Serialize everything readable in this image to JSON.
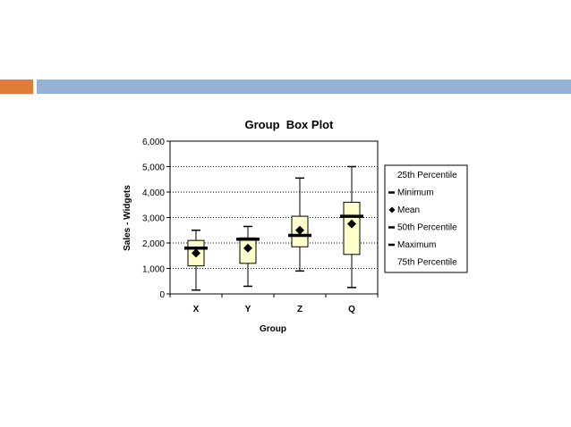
{
  "slide": {
    "accent_orange": "#e07b39",
    "accent_blue": "#95b3d7"
  },
  "chart_data": {
    "type": "box",
    "title": "Group  Box Plot",
    "xlabel": "Group",
    "ylabel": "Sales - Widgets",
    "ylim": [
      0,
      6000
    ],
    "yticks": [
      0,
      1000,
      2000,
      3000,
      4000,
      5000,
      6000
    ],
    "ytick_labels": [
      "0",
      "1,000",
      "2,000",
      "3,000",
      "4,000",
      "5,000",
      "6,000"
    ],
    "grid": "horizontal dotted",
    "box_color": "#ffffcc",
    "categories": [
      "X",
      "Y",
      "Z",
      "Q"
    ],
    "boxes": [
      {
        "min": 150,
        "p25": 1100,
        "median": 1800,
        "mean": 1600,
        "p75": 2100,
        "max": 2500
      },
      {
        "min": 300,
        "p25": 1200,
        "median": 2150,
        "mean": 1800,
        "p75": 2200,
        "max": 2650
      },
      {
        "min": 900,
        "p25": 1850,
        "median": 2300,
        "mean": 2500,
        "p75": 3050,
        "max": 4550
      },
      {
        "min": 250,
        "p25": 1550,
        "median": 3050,
        "mean": 2750,
        "p75": 3600,
        "max": 5000
      }
    ],
    "legend": {
      "placement": "right",
      "entries": [
        "25th Percentile",
        "Minimum",
        "Mean",
        "50th Percentile",
        "Maximum",
        "75th Percentile"
      ]
    }
  }
}
